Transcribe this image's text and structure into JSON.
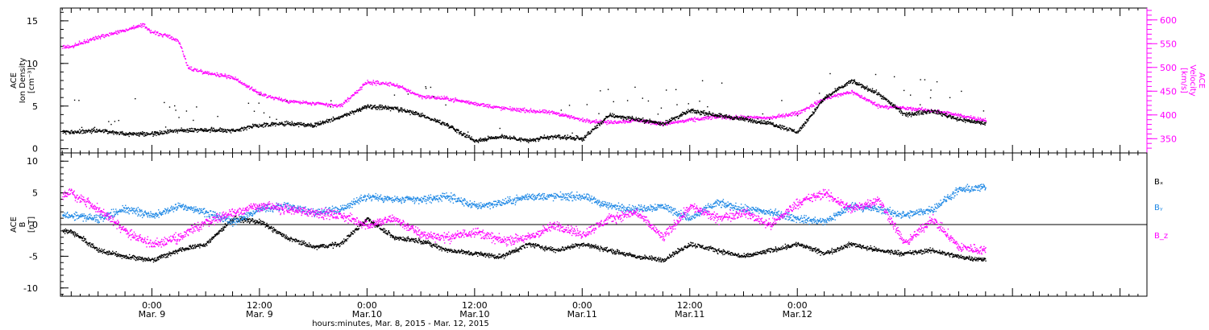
{
  "colors": {
    "black": "#000000",
    "magenta": "#ff00ff",
    "blue": "#1e88e5"
  },
  "chart_data": [
    {
      "type": "scatter",
      "panel": "top",
      "y_left": {
        "label_lines": [
          "ACE",
          "Ion Density",
          "[cm⁻³]"
        ],
        "ticks": [
          0,
          5,
          10,
          15
        ],
        "ylim": [
          -0.5,
          16.5
        ],
        "color": "#000000"
      },
      "y_right": {
        "label_lines": [
          "ACE",
          "Velocity",
          "[km/s]"
        ],
        "ticks": [
          350,
          400,
          450,
          500,
          550,
          600
        ],
        "ylim": [
          320,
          625
        ],
        "color": "#ff00ff"
      },
      "series": [
        {
          "name": "Ion Density",
          "axis": "left",
          "color": "#000000",
          "x": [
            -9,
            -6,
            -3,
            0,
            3,
            6,
            9,
            12,
            15,
            18,
            21,
            24,
            27,
            30,
            33,
            36,
            39,
            42,
            45,
            48,
            51,
            54,
            57,
            60,
            63,
            66,
            69,
            72,
            75,
            78,
            81,
            84,
            87,
            90,
            93
          ],
          "y": [
            2.0,
            2.2,
            1.8,
            1.8,
            2.2,
            2.3,
            2.2,
            2.8,
            3.0,
            2.8,
            3.8,
            5.0,
            4.8,
            4.0,
            2.8,
            1.0,
            1.5,
            1.0,
            1.5,
            1.2,
            4.0,
            3.5,
            3.0,
            4.5,
            4.0,
            3.5,
            3.0,
            2.0,
            6.0,
            8.0,
            6.5,
            4.0,
            4.5,
            3.5,
            3.0
          ]
        },
        {
          "name": "Velocity",
          "axis": "right",
          "color": "#ff00ff",
          "x": [
            -9,
            -6,
            -3,
            -1,
            0,
            2,
            3,
            4,
            6,
            9,
            12,
            15,
            18,
            21,
            24,
            27,
            30,
            33,
            36,
            39,
            42,
            45,
            48,
            51,
            54,
            57,
            60,
            63,
            66,
            69,
            72,
            75,
            78,
            81,
            84,
            87,
            90,
            93
          ],
          "y": [
            545,
            565,
            580,
            590,
            575,
            565,
            555,
            500,
            490,
            480,
            445,
            430,
            425,
            420,
            470,
            465,
            440,
            435,
            425,
            415,
            410,
            405,
            390,
            385,
            390,
            382,
            390,
            397,
            395,
            395,
            405,
            435,
            450,
            420,
            415,
            410,
            400,
            390
          ]
        }
      ]
    },
    {
      "type": "scatter",
      "panel": "bottom",
      "y_left": {
        "label_lines": [
          "ACE",
          "B",
          "[nT]"
        ],
        "ticks": [
          -10,
          -5,
          0,
          5,
          10
        ],
        "ylim": [
          -11.3,
          11.3
        ],
        "color": "#000000"
      },
      "zero_line": true,
      "legend": [
        "Bₓ",
        "Bᵧ",
        "B_z"
      ],
      "series": [
        {
          "name": "Bₓ",
          "color": "#000000",
          "x": [
            -9,
            -6,
            -3,
            0,
            3,
            6,
            9,
            12,
            15,
            18,
            21,
            24,
            27,
            30,
            33,
            36,
            39,
            42,
            45,
            48,
            51,
            54,
            57,
            60,
            63,
            66,
            69,
            72,
            75,
            78,
            81,
            84,
            87,
            90,
            93
          ],
          "y": [
            -1.0,
            -4.0,
            -5.0,
            -5.5,
            -4.0,
            -3.0,
            1.0,
            0.5,
            -2.0,
            -3.5,
            -3.0,
            1.0,
            -2.0,
            -2.5,
            -4.0,
            -4.5,
            -5.0,
            -3.0,
            -4.0,
            -3.0,
            -4.0,
            -5.0,
            -5.5,
            -3.0,
            -4.0,
            -5.0,
            -4.0,
            -3.0,
            -4.5,
            -3.0,
            -4.0,
            -4.5,
            -4.0,
            -5.0,
            -5.5
          ]
        },
        {
          "name": "Bᵧ",
          "color": "#1e88e5",
          "x": [
            -9,
            -6,
            -3,
            0,
            3,
            6,
            9,
            12,
            15,
            18,
            21,
            24,
            27,
            30,
            33,
            36,
            39,
            42,
            45,
            48,
            51,
            54,
            57,
            60,
            63,
            66,
            69,
            72,
            75,
            78,
            81,
            84,
            87,
            90,
            93
          ],
          "y": [
            1.5,
            1.0,
            2.5,
            1.5,
            3.0,
            2.0,
            0.5,
            2.5,
            3.0,
            2.0,
            2.5,
            4.5,
            4.0,
            4.0,
            4.5,
            3.0,
            3.5,
            4.5,
            4.5,
            4.5,
            3.0,
            2.5,
            3.0,
            1.0,
            3.5,
            2.5,
            2.0,
            1.0,
            0.5,
            3.0,
            2.5,
            1.5,
            2.5,
            5.5,
            6.0
          ]
        },
        {
          "name": "B_z",
          "color": "#ff00ff",
          "x": [
            -9,
            -6,
            -3,
            0,
            3,
            6,
            9,
            12,
            15,
            18,
            21,
            24,
            27,
            30,
            33,
            36,
            39,
            42,
            45,
            48,
            51,
            54,
            57,
            60,
            63,
            66,
            69,
            72,
            75,
            78,
            81,
            84,
            87,
            90,
            93
          ],
          "y": [
            5.0,
            2.5,
            -1.0,
            -3.0,
            -2.0,
            0.5,
            2.0,
            3.0,
            2.5,
            2.0,
            1.5,
            0.0,
            1.0,
            -1.5,
            -2.0,
            -1.0,
            -2.5,
            -2.0,
            0.0,
            -1.5,
            1.0,
            2.0,
            -2.0,
            3.0,
            1.0,
            2.0,
            0.0,
            3.5,
            5.0,
            2.5,
            4.0,
            -3.0,
            1.0,
            -3.5,
            -4.0
          ]
        }
      ]
    }
  ],
  "x_axis": {
    "title": "hours:minutes, Mar. 8, 2015 - Mar. 12, 2015",
    "xlim": [
      -10.2,
      111
    ],
    "ticks": [
      {
        "hours": 0,
        "time": "0:00",
        "date": "Mar. 9"
      },
      {
        "hours": 12,
        "time": "12:00",
        "date": "Mar. 9"
      },
      {
        "hours": 24,
        "time": "0:00",
        "date": "Mar.10"
      },
      {
        "hours": 36,
        "time": "12:00",
        "date": "Mar.10"
      },
      {
        "hours": 48,
        "time": "0:00",
        "date": "Mar.11"
      },
      {
        "hours": 60,
        "time": "12:00",
        "date": "Mar.11"
      },
      {
        "hours": 72,
        "time": "0:00",
        "date": "Mar.12"
      }
    ],
    "minor_step_hours": 1,
    "medium_step_hours": 3
  }
}
